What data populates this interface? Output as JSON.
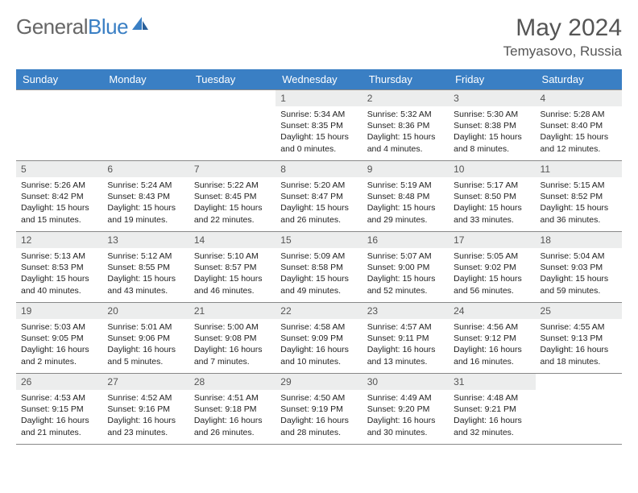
{
  "brand": {
    "part1": "General",
    "part2": "Blue"
  },
  "title": "May 2024",
  "location": "Temyasovo, Russia",
  "colors": {
    "header_bg": "#3a7fc4",
    "header_text": "#ffffff",
    "daynum_bg": "#eceded",
    "border": "#888888",
    "title_text": "#555555",
    "body_text": "#222222",
    "page_bg": "#ffffff"
  },
  "weekdays": [
    "Sunday",
    "Monday",
    "Tuesday",
    "Wednesday",
    "Thursday",
    "Friday",
    "Saturday"
  ],
  "layout": {
    "first_weekday_index": 3,
    "days_in_month": 31
  },
  "days": [
    {
      "n": 1,
      "sunrise": "5:34 AM",
      "sunset": "8:35 PM",
      "daylight": "15 hours and 0 minutes."
    },
    {
      "n": 2,
      "sunrise": "5:32 AM",
      "sunset": "8:36 PM",
      "daylight": "15 hours and 4 minutes."
    },
    {
      "n": 3,
      "sunrise": "5:30 AM",
      "sunset": "8:38 PM",
      "daylight": "15 hours and 8 minutes."
    },
    {
      "n": 4,
      "sunrise": "5:28 AM",
      "sunset": "8:40 PM",
      "daylight": "15 hours and 12 minutes."
    },
    {
      "n": 5,
      "sunrise": "5:26 AM",
      "sunset": "8:42 PM",
      "daylight": "15 hours and 15 minutes."
    },
    {
      "n": 6,
      "sunrise": "5:24 AM",
      "sunset": "8:43 PM",
      "daylight": "15 hours and 19 minutes."
    },
    {
      "n": 7,
      "sunrise": "5:22 AM",
      "sunset": "8:45 PM",
      "daylight": "15 hours and 22 minutes."
    },
    {
      "n": 8,
      "sunrise": "5:20 AM",
      "sunset": "8:47 PM",
      "daylight": "15 hours and 26 minutes."
    },
    {
      "n": 9,
      "sunrise": "5:19 AM",
      "sunset": "8:48 PM",
      "daylight": "15 hours and 29 minutes."
    },
    {
      "n": 10,
      "sunrise": "5:17 AM",
      "sunset": "8:50 PM",
      "daylight": "15 hours and 33 minutes."
    },
    {
      "n": 11,
      "sunrise": "5:15 AM",
      "sunset": "8:52 PM",
      "daylight": "15 hours and 36 minutes."
    },
    {
      "n": 12,
      "sunrise": "5:13 AM",
      "sunset": "8:53 PM",
      "daylight": "15 hours and 40 minutes."
    },
    {
      "n": 13,
      "sunrise": "5:12 AM",
      "sunset": "8:55 PM",
      "daylight": "15 hours and 43 minutes."
    },
    {
      "n": 14,
      "sunrise": "5:10 AM",
      "sunset": "8:57 PM",
      "daylight": "15 hours and 46 minutes."
    },
    {
      "n": 15,
      "sunrise": "5:09 AM",
      "sunset": "8:58 PM",
      "daylight": "15 hours and 49 minutes."
    },
    {
      "n": 16,
      "sunrise": "5:07 AM",
      "sunset": "9:00 PM",
      "daylight": "15 hours and 52 minutes."
    },
    {
      "n": 17,
      "sunrise": "5:05 AM",
      "sunset": "9:02 PM",
      "daylight": "15 hours and 56 minutes."
    },
    {
      "n": 18,
      "sunrise": "5:04 AM",
      "sunset": "9:03 PM",
      "daylight": "15 hours and 59 minutes."
    },
    {
      "n": 19,
      "sunrise": "5:03 AM",
      "sunset": "9:05 PM",
      "daylight": "16 hours and 2 minutes."
    },
    {
      "n": 20,
      "sunrise": "5:01 AM",
      "sunset": "9:06 PM",
      "daylight": "16 hours and 5 minutes."
    },
    {
      "n": 21,
      "sunrise": "5:00 AM",
      "sunset": "9:08 PM",
      "daylight": "16 hours and 7 minutes."
    },
    {
      "n": 22,
      "sunrise": "4:58 AM",
      "sunset": "9:09 PM",
      "daylight": "16 hours and 10 minutes."
    },
    {
      "n": 23,
      "sunrise": "4:57 AM",
      "sunset": "9:11 PM",
      "daylight": "16 hours and 13 minutes."
    },
    {
      "n": 24,
      "sunrise": "4:56 AM",
      "sunset": "9:12 PM",
      "daylight": "16 hours and 16 minutes."
    },
    {
      "n": 25,
      "sunrise": "4:55 AM",
      "sunset": "9:13 PM",
      "daylight": "16 hours and 18 minutes."
    },
    {
      "n": 26,
      "sunrise": "4:53 AM",
      "sunset": "9:15 PM",
      "daylight": "16 hours and 21 minutes."
    },
    {
      "n": 27,
      "sunrise": "4:52 AM",
      "sunset": "9:16 PM",
      "daylight": "16 hours and 23 minutes."
    },
    {
      "n": 28,
      "sunrise": "4:51 AM",
      "sunset": "9:18 PM",
      "daylight": "16 hours and 26 minutes."
    },
    {
      "n": 29,
      "sunrise": "4:50 AM",
      "sunset": "9:19 PM",
      "daylight": "16 hours and 28 minutes."
    },
    {
      "n": 30,
      "sunrise": "4:49 AM",
      "sunset": "9:20 PM",
      "daylight": "16 hours and 30 minutes."
    },
    {
      "n": 31,
      "sunrise": "4:48 AM",
      "sunset": "9:21 PM",
      "daylight": "16 hours and 32 minutes."
    }
  ],
  "labels": {
    "sunrise": "Sunrise:",
    "sunset": "Sunset:",
    "daylight": "Daylight:"
  }
}
